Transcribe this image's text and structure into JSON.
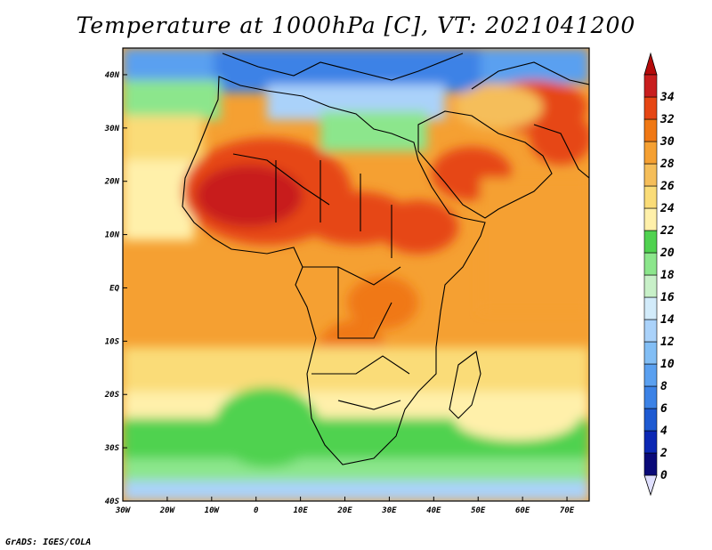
{
  "title": "Temperature at 1000hPa [C], VT: 2021041200",
  "credit": "GrADS: IGES/COLA",
  "map": {
    "lon_range": [
      -30,
      75
    ],
    "lat_range": [
      -40,
      45
    ],
    "lat_ticks": [
      "40N",
      "30N",
      "20N",
      "10N",
      "EQ",
      "10S",
      "20S",
      "30S",
      "40S"
    ],
    "lat_values": [
      40,
      30,
      20,
      10,
      0,
      -10,
      -20,
      -30,
      -40
    ],
    "lon_ticks": [
      "30W",
      "20W",
      "10W",
      "0",
      "10E",
      "20E",
      "30E",
      "40E",
      "50E",
      "60E",
      "70E"
    ],
    "lon_values": [
      -30,
      -20,
      -10,
      0,
      10,
      20,
      30,
      40,
      50,
      60,
      70
    ]
  },
  "colorbar": {
    "labels": [
      "0",
      "2",
      "4",
      "6",
      "8",
      "10",
      "12",
      "14",
      "16",
      "18",
      "20",
      "22",
      "24",
      "26",
      "28",
      "30",
      "32",
      "34"
    ],
    "colors": [
      "#0a0a78",
      "#0c28b4",
      "#1e5ad2",
      "#3c82e6",
      "#5aa0f0",
      "#82bef5",
      "#aad2fa",
      "#d2ebfa",
      "#c8f0c8",
      "#8ce68c",
      "#50d250",
      "#fff0aa",
      "#fadc78",
      "#f5be5a",
      "#f5a032",
      "#f07814",
      "#e64614",
      "#c81e1e"
    ],
    "under_color": "#e0e0ff",
    "over_color": "#b40a0a"
  }
}
